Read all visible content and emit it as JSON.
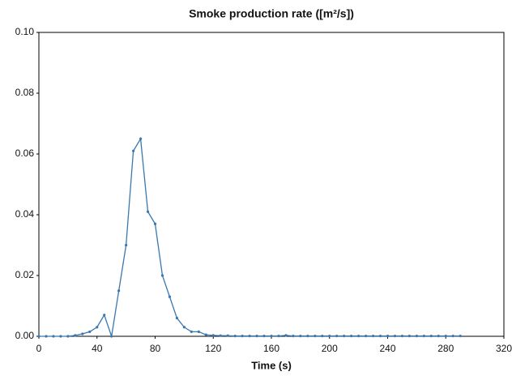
{
  "chart_data": {
    "type": "line",
    "title": "Smoke production rate ([m²/s])",
    "x_label": "Time (s)",
    "x": [
      0,
      5,
      10,
      15,
      20,
      25,
      30,
      35,
      40,
      45,
      50,
      55,
      60,
      65,
      70,
      75,
      80,
      85,
      90,
      95,
      100,
      105,
      110,
      115,
      120,
      125,
      130,
      135,
      140,
      145,
      150,
      155,
      160,
      165,
      170,
      175,
      180,
      185,
      190,
      195,
      200,
      205,
      210,
      215,
      220,
      225,
      230,
      235,
      240,
      245,
      250,
      255,
      260,
      265,
      270,
      275,
      280,
      285,
      290
    ],
    "series": [
      {
        "name": "Smoke production rate",
        "color": "#3a78b0",
        "values": [
          0,
          0,
          0,
          0,
          0,
          0.0003,
          0.0008,
          0.0015,
          0.003,
          0.007,
          0,
          0.015,
          0.03,
          0.061,
          0.065,
          0.041,
          0.037,
          0.02,
          0.013,
          0.006,
          0.003,
          0.0015,
          0.0015,
          0.0005,
          0.0003,
          0.0002,
          0.0002,
          0.0001,
          0.0001,
          0.0001,
          0.0001,
          0.0001,
          0.0001,
          0.0001,
          0.0003,
          0.0001,
          0.0001,
          0.0001,
          0.0001,
          0.0001,
          0.0001,
          0.0001,
          0.0001,
          0.0001,
          0.0001,
          0.0001,
          0.0001,
          0.0001,
          0.0001,
          0.0001,
          0.0001,
          0.0001,
          0.0001,
          0.0001,
          0.0001,
          0.0001,
          0.0001,
          0.0001,
          0.0001
        ]
      }
    ],
    "xlim": [
      0,
      320
    ],
    "xticks": [
      0,
      40,
      80,
      120,
      160,
      200,
      240,
      280,
      320
    ],
    "ylim": [
      0,
      0.1
    ],
    "yticks": [
      {
        "value": 0,
        "label": "0.00"
      },
      {
        "value": 0.02,
        "label": "0.02"
      },
      {
        "value": 0.04,
        "label": "0.04"
      },
      {
        "value": 0.06,
        "label": "0.06"
      },
      {
        "value": 0.08,
        "label": "0.08"
      },
      {
        "value": 0.1,
        "label": "0.10"
      }
    ],
    "grid": false
  }
}
